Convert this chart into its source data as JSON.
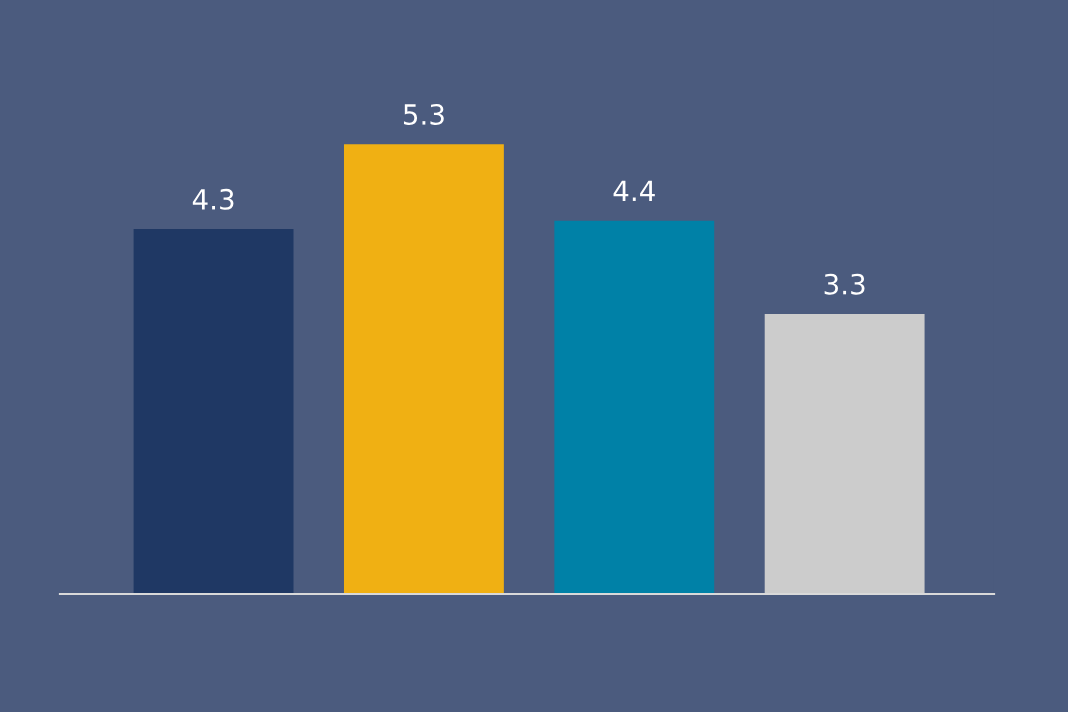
{
  "chart_data": {
    "type": "bar",
    "categories": [
      null,
      null,
      null,
      null
    ],
    "values": [
      4.3,
      5.3,
      4.4,
      3.3
    ],
    "colors": [
      "#1f3864",
      "#f0b013",
      "#0081a7",
      "#cccccc"
    ],
    "ylim": [
      0,
      7
    ],
    "data_labels": true,
    "grid": false,
    "legend": false
  }
}
